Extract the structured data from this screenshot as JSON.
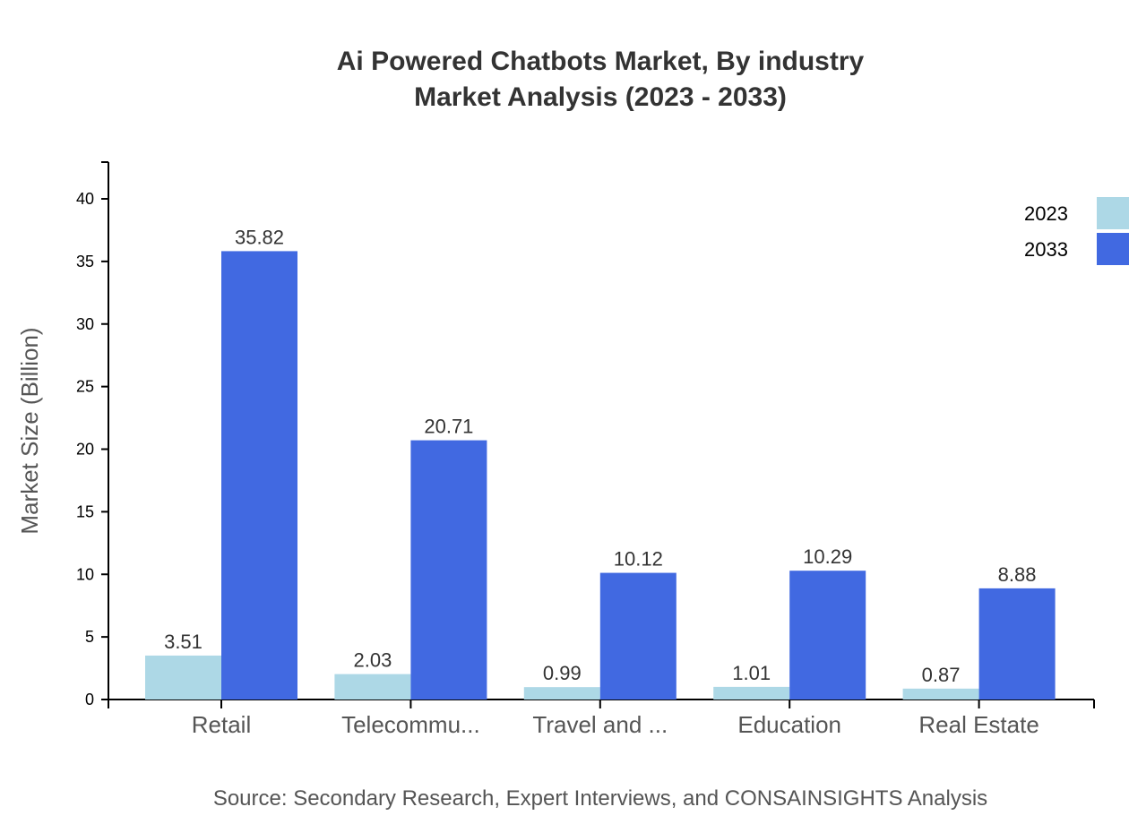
{
  "chart_data": {
    "type": "bar",
    "title": "Ai Powered Chatbots Market, By industry",
    "subtitle": "Market Analysis (2023 - 2033)",
    "xlabel": "",
    "ylabel": "Market Size (Billion)",
    "categories": [
      "Retail",
      "Telecommu...",
      "Travel and ...",
      "Education",
      "Real Estate"
    ],
    "series": [
      {
        "name": "2023",
        "color": "#add8e6",
        "values": [
          3.51,
          2.03,
          0.99,
          1.01,
          0.87
        ]
      },
      {
        "name": "2033",
        "color": "#4169e1",
        "values": [
          35.82,
          20.71,
          10.12,
          10.29,
          8.88
        ]
      }
    ],
    "ylim": [
      0,
      42.9
    ],
    "yticks": [
      0,
      5,
      10,
      15,
      20,
      25,
      30,
      35,
      40
    ],
    "grid": false,
    "legend_position": "top-right",
    "source": "Source: Secondary Research, Expert Interviews, and CONSAINSIGHTS Analysis"
  }
}
